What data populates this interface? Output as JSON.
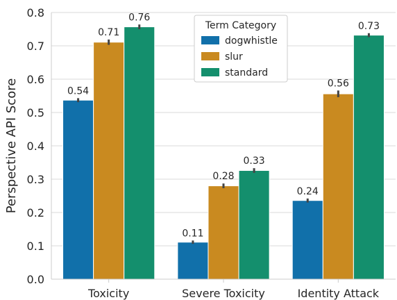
{
  "chart_data": {
    "type": "bar",
    "title": "",
    "xlabel": "",
    "ylabel": "Perspective API Score",
    "ylim": [
      0,
      0.8
    ],
    "yticks": [
      "0.0",
      "0.1",
      "0.2",
      "0.3",
      "0.4",
      "0.5",
      "0.6",
      "0.7",
      "0.8"
    ],
    "grid": "horizontal",
    "categories": [
      "Toxicity",
      "Severe Toxicity",
      "Identity Attack"
    ],
    "legend": {
      "title": "Term Category",
      "placement": "top-center"
    },
    "series": [
      {
        "name": "dogwhistle",
        "color": "#1170aa",
        "values": [
          0.537,
          0.111,
          0.236
        ],
        "errors": [
          0.006,
          0.005,
          0.006
        ],
        "labels": [
          "0.54",
          "0.11",
          "0.24"
        ]
      },
      {
        "name": "slur",
        "color": "#c98a20",
        "values": [
          0.711,
          0.28,
          0.556
        ],
        "errors": [
          0.008,
          0.007,
          0.01
        ],
        "labels": [
          "0.71",
          "0.28",
          "0.56"
        ]
      },
      {
        "name": "standard",
        "color": "#148f6d",
        "values": [
          0.757,
          0.326,
          0.732
        ],
        "errors": [
          0.007,
          0.007,
          0.006
        ],
        "labels": [
          "0.76",
          "0.33",
          "0.73"
        ]
      }
    ]
  }
}
